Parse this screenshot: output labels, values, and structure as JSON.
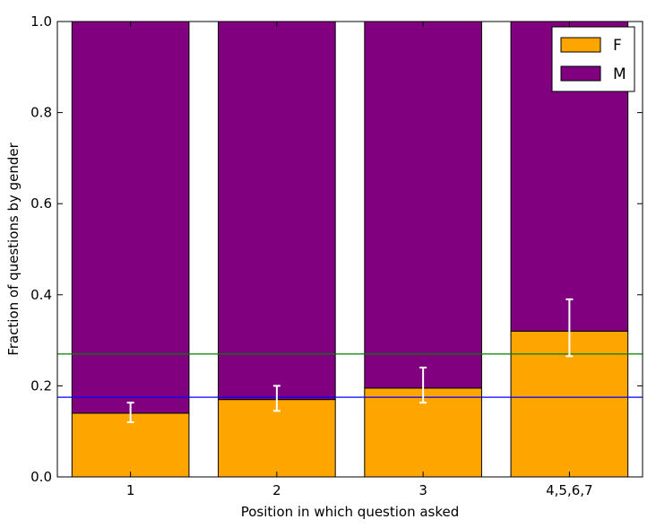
{
  "chart_data": {
    "type": "bar",
    "stacked": true,
    "categories": [
      "1",
      "2",
      "3",
      "4,5,6,7"
    ],
    "series": [
      {
        "name": "F",
        "values": [
          0.14,
          0.17,
          0.195,
          0.32
        ],
        "color": "#FFA500"
      },
      {
        "name": "M",
        "values": [
          0.86,
          0.83,
          0.805,
          0.68
        ],
        "color": "#800080"
      }
    ],
    "error_bars": {
      "series": "F",
      "color": "#ffffff",
      "low": [
        0.12,
        0.145,
        0.163,
        0.265
      ],
      "high": [
        0.163,
        0.2,
        0.24,
        0.39
      ]
    },
    "reference_lines": [
      {
        "y": 0.27,
        "color": "#008000"
      },
      {
        "y": 0.175,
        "color": "#0000FF"
      }
    ],
    "xlabel": "Position in which question asked",
    "ylabel": "Fraction of questions by gender",
    "ylim": [
      0.0,
      1.0
    ],
    "yticks": [
      0.0,
      0.2,
      0.4,
      0.6,
      0.8,
      1.0
    ],
    "ytick_labels": [
      "0.0",
      "0.2",
      "0.4",
      "0.6",
      "0.8",
      "1.0"
    ],
    "grid": false,
    "legend": {
      "position": "top-right",
      "entries": [
        "F",
        "M"
      ]
    }
  }
}
